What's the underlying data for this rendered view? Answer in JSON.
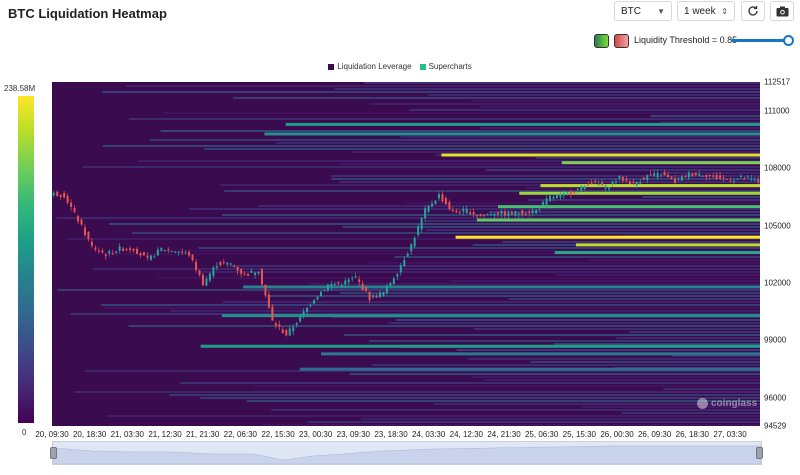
{
  "header": {
    "title": "BTC Liquidation Heatmap",
    "symbol_select": "BTC",
    "range_select": "1 week",
    "threshold_label": "Liquidity Threshold = 0.85",
    "threshold_value": 0.85
  },
  "icons": {
    "refresh": "refresh-icon",
    "camera": "camera-icon",
    "chevron": "chevron-down-icon"
  },
  "watermark": "coinglass",
  "colorbar": {
    "max_label": "238.58M",
    "min_label": "0"
  },
  "colors": {
    "background": "#3b0b50",
    "up_candle": "#26a69a",
    "down_candle": "#ef5350",
    "legend_leverage": "#3d0a52",
    "legend_supercharts": "#22c08a"
  },
  "chart_data": {
    "type": "heatmap",
    "title": "",
    "legend": [
      "Liquidation Leverage",
      "Supercharts"
    ],
    "y_ticks": [
      "112517",
      "111000",
      "108000",
      "105000",
      "102000",
      "99000",
      "96000",
      "94529"
    ],
    "ylim": [
      94529,
      112517
    ],
    "x_ticks": [
      "20, 09:30",
      "20, 18:30",
      "21, 03:30",
      "21, 12:30",
      "21, 21:30",
      "22, 06:30",
      "22, 15:30",
      "23, 00:30",
      "23, 09:30",
      "23, 18:30",
      "24, 03:30",
      "24, 12:30",
      "24, 21:30",
      "25, 06:30",
      "25, 15:30",
      "26, 00:30",
      "26, 09:30",
      "26, 18:30",
      "27, 03:30"
    ],
    "price_path": [
      [
        0,
        106700
      ],
      [
        1,
        106600
      ],
      [
        2,
        105300
      ],
      [
        3,
        103900
      ],
      [
        4,
        103500
      ],
      [
        5,
        103800
      ],
      [
        6,
        103800
      ],
      [
        7,
        103200
      ],
      [
        8,
        103800
      ],
      [
        9,
        103700
      ],
      [
        10,
        103500
      ],
      [
        11,
        102000
      ],
      [
        12,
        103000
      ],
      [
        13,
        103000
      ],
      [
        14,
        102400
      ],
      [
        15,
        102700
      ],
      [
        16,
        100000
      ],
      [
        17,
        99300
      ],
      [
        18,
        100200
      ],
      [
        19,
        101200
      ],
      [
        20,
        101900
      ],
      [
        21,
        102000
      ],
      [
        22,
        102300
      ],
      [
        23,
        101200
      ],
      [
        24,
        101500
      ],
      [
        25,
        102600
      ],
      [
        26,
        104000
      ],
      [
        27,
        105800
      ],
      [
        28,
        106600
      ],
      [
        29,
        105700
      ],
      [
        30,
        105800
      ],
      [
        31,
        105500
      ],
      [
        32,
        105700
      ],
      [
        33,
        105600
      ],
      [
        34,
        105700
      ],
      [
        35,
        105800
      ],
      [
        36,
        106500
      ],
      [
        37,
        106600
      ],
      [
        38,
        106900
      ],
      [
        39,
        107300
      ],
      [
        40,
        107000
      ],
      [
        41,
        107500
      ],
      [
        42,
        107200
      ],
      [
        43,
        107600
      ],
      [
        44,
        107700
      ],
      [
        45,
        107300
      ],
      [
        46,
        107700
      ],
      [
        47,
        107700
      ],
      [
        48,
        107500
      ],
      [
        49,
        107400
      ],
      [
        50,
        107500
      ],
      [
        51,
        107300
      ]
    ],
    "liquidity_bands": [
      {
        "price": 108700,
        "intensity": 0.95
      },
      {
        "price": 108300,
        "intensity": 0.8
      },
      {
        "price": 107100,
        "intensity": 0.9
      },
      {
        "price": 106700,
        "intensity": 0.85
      },
      {
        "price": 106000,
        "intensity": 0.7
      },
      {
        "price": 105300,
        "intensity": 0.75
      },
      {
        "price": 104400,
        "intensity": 1.0
      },
      {
        "price": 104000,
        "intensity": 0.9
      },
      {
        "price": 103600,
        "intensity": 0.6
      },
      {
        "price": 110300,
        "intensity": 0.55
      },
      {
        "price": 109800,
        "intensity": 0.5
      },
      {
        "price": 101800,
        "intensity": 0.45
      },
      {
        "price": 100300,
        "intensity": 0.5
      },
      {
        "price": 98700,
        "intensity": 0.55
      },
      {
        "price": 98300,
        "intensity": 0.4
      },
      {
        "price": 97500,
        "intensity": 0.35
      }
    ]
  }
}
